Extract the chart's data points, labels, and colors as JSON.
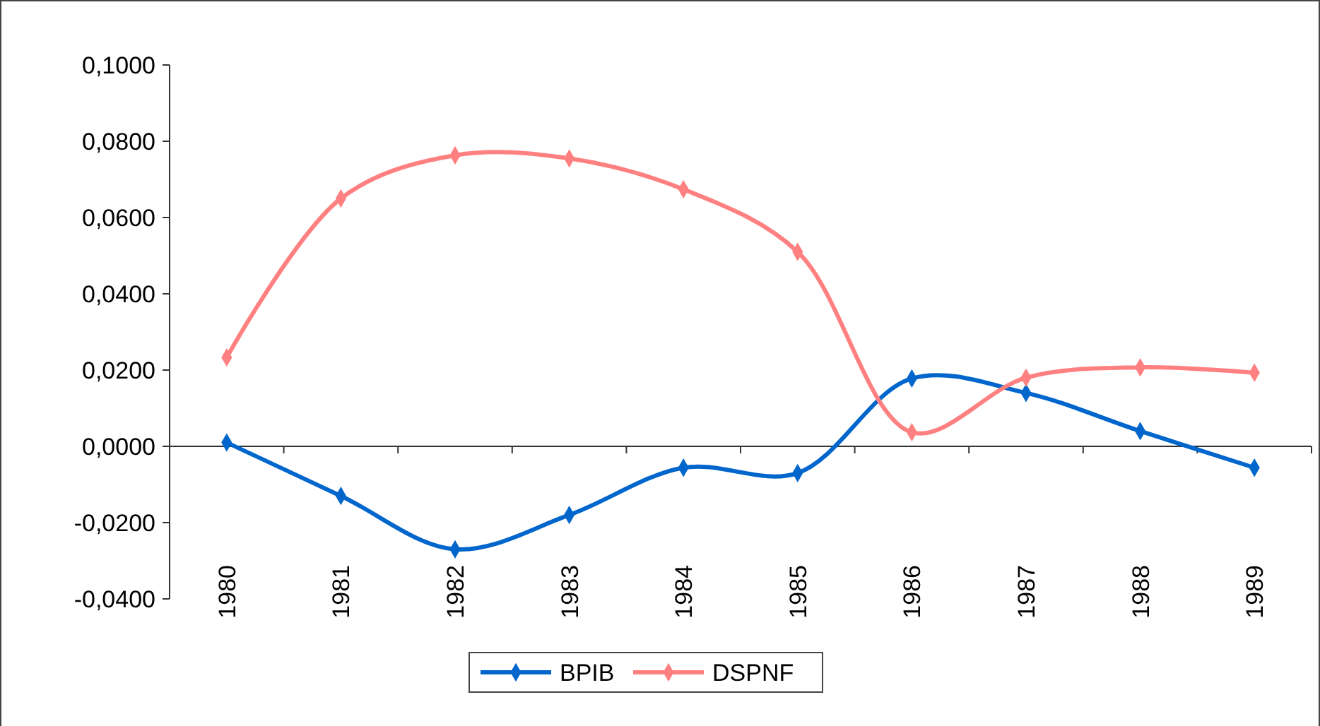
{
  "chart_data": {
    "type": "line",
    "categories": [
      "1980",
      "1981",
      "1982",
      "1983",
      "1984",
      "1985",
      "1986",
      "1987",
      "1988",
      "1989"
    ],
    "series": [
      {
        "name": "BPIB",
        "color": "#0066cc",
        "values": [
          0.001,
          -0.013,
          -0.027,
          -0.018,
          -0.0056,
          -0.007,
          0.0178,
          0.014,
          0.004,
          -0.0056
        ]
      },
      {
        "name": "DSPNF",
        "color": "#ff8080",
        "values": [
          0.0233,
          0.065,
          0.0763,
          0.0755,
          0.0674,
          0.051,
          0.0037,
          0.018,
          0.0207,
          0.0193
        ]
      }
    ],
    "ylim": [
      -0.04,
      0.1
    ],
    "yticks": [
      {
        "value": -0.04,
        "label": "-0,0400"
      },
      {
        "value": -0.02,
        "label": "-0,0200"
      },
      {
        "value": 0,
        "label": "0,0000"
      },
      {
        "value": 0.02,
        "label": "0,0200"
      },
      {
        "value": 0.04,
        "label": "0,0400"
      },
      {
        "value": 0.06,
        "label": "0,0600"
      },
      {
        "value": 0.08,
        "label": "0,0800"
      },
      {
        "value": 0.1,
        "label": "0,1000"
      }
    ],
    "marker": "diamond",
    "line_style": "solid",
    "legend": "bottom"
  }
}
